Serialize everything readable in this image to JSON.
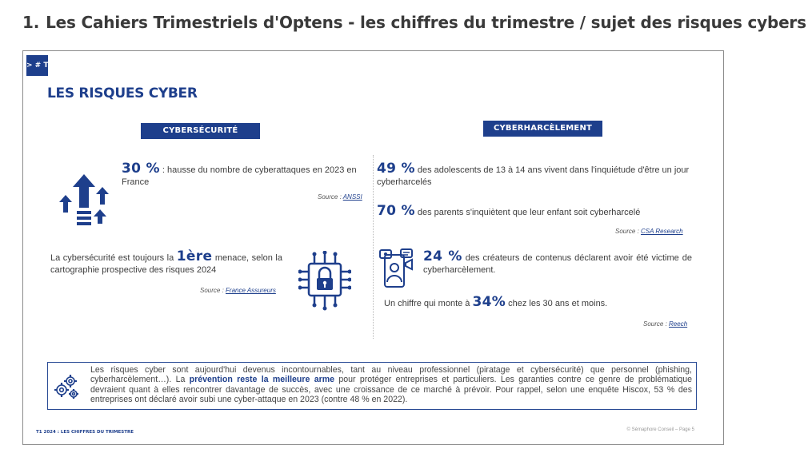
{
  "page_heading": {
    "number": "1.",
    "text": "Les Cahiers Trimestriels d'Optens - les chiffres du trimestre / sujet des risques cybers"
  },
  "slide": {
    "tag": "> # T",
    "title": "LES RISQUES CYBER",
    "left": {
      "pill": "CYBERSÉCURITÉ",
      "stat1": {
        "value": "30 %",
        "text": " : hausse du nombre de cyberattaques en 2023 en France",
        "source_prefix": "Source : ",
        "source_link": "ANSSI"
      },
      "stat2": {
        "before": "La cybersécurité est toujours la ",
        "value": "1ère",
        "after": " menace, selon la cartographie prospective des risques 2024",
        "source_prefix": "Source : ",
        "source_link": "France Assureurs"
      }
    },
    "right": {
      "pill": "CYBERHARCÈLEMENT",
      "stat1": {
        "value": "49 %",
        "text": " des adolescents de 13 à 14 ans vivent dans l'inquiétude d'être un jour cyberharcelés"
      },
      "stat2": {
        "value": "70 %",
        "text": " des parents s'inquiètent que leur enfant soit cyberharcelé",
        "source_prefix": "Source : ",
        "source_link": "CSA Research"
      },
      "stat3": {
        "value": "24 %",
        "text": " des créateurs de contenus déclarent avoir été victime de cyberharcèlement."
      },
      "stat4": {
        "before": "Un chiffre qui monte à ",
        "value": "34%",
        "after": " chez les 30 ans et moins.",
        "source_prefix": "Source : ",
        "source_link": "Reech"
      }
    },
    "note": {
      "part1": "Les risques cyber sont aujourd'hui devenus incontournables, tant au niveau professionnel (piratage et cybersécurité) que personnel (phishing, cyberharcèlement…). La ",
      "bold": "prévention reste la meilleure arme",
      "part2": " pour protéger entreprises et particuliers. Les garanties contre ce genre de problématique devraient quant à elles rencontrer davantage de succès, avec une croissance de ce marché à prévoir. Pour rappel, selon une enquête Hiscox, 53 % des entreprises ont déclaré avoir subi une cyber-attaque en 2023 (contre 48 % en 2022)."
    },
    "footer_left": "T1 2024 : LES CHIFFRES DU TRIMESTRE",
    "footer_right": "© Sémaphore Conseil – Page 5"
  },
  "colors": {
    "brand_blue": "#1e3f8c",
    "text": "#3d3d3d"
  },
  "icons": [
    "rising-arrows-icon",
    "circuit-lock-icon",
    "phone-harassment-icon",
    "gears-icon"
  ]
}
